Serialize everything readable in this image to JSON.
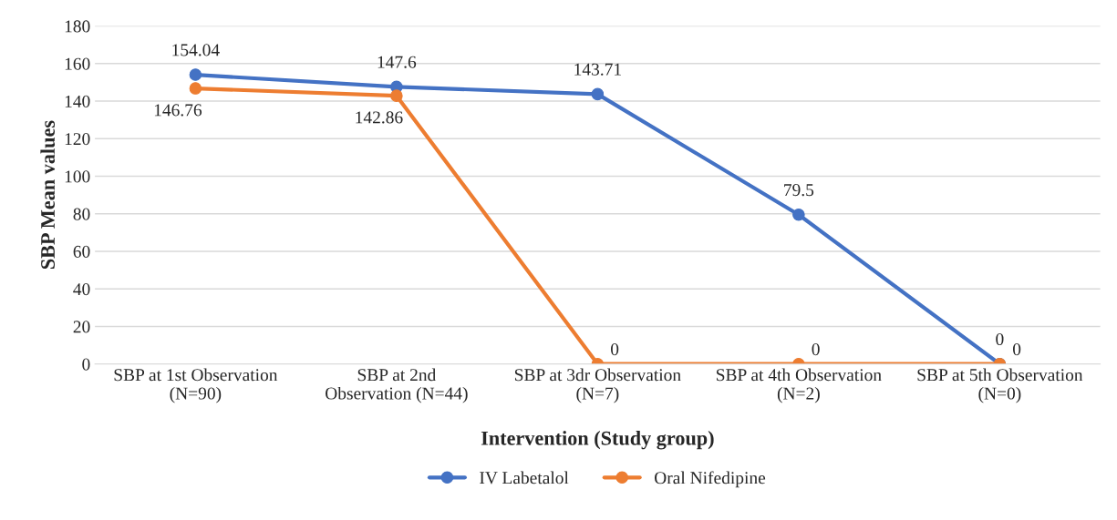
{
  "chart_data": {
    "type": "line",
    "xlabel": "Intervention (Study group)",
    "ylabel": "SBP Mean values",
    "categories": [
      "SBP at 1st Observation\n(N=90)",
      "SBP at 2nd\nObservation (N=44)",
      "SBP at 3dr Observation\n(N=7)",
      "SBP at 4th Observation\n(N=2)",
      "SBP at 5th Observation\n(N=0)"
    ],
    "series": [
      {
        "name": "IV Labetalol",
        "color": "#4472c4",
        "values": [
          154.04,
          147.6,
          143.71,
          79.5,
          0
        ]
      },
      {
        "name": "Oral Nifedipine",
        "color": "#ed7d31",
        "values": [
          146.76,
          142.86,
          0,
          0,
          0
        ]
      }
    ],
    "ylim": [
      0,
      180
    ],
    "yticks": [
      0,
      20,
      40,
      60,
      80,
      100,
      120,
      140,
      160,
      180
    ],
    "grid": "y",
    "legend": "bottom",
    "marker": "circle",
    "line_style": "solid",
    "data_labels": true
  }
}
